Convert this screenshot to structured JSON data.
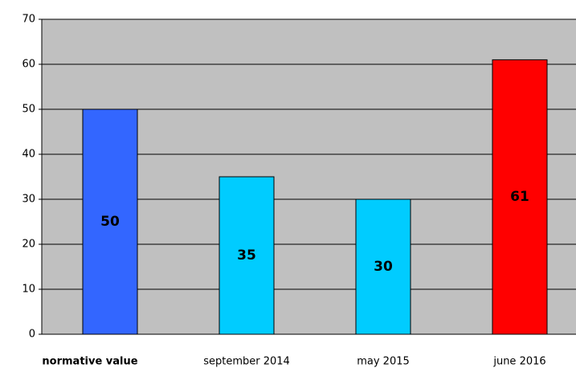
{
  "chart_data": {
    "type": "bar",
    "categories": [
      "normative value",
      "september 2014",
      "may 2015",
      "june 2016"
    ],
    "values": [
      50,
      35,
      30,
      61
    ],
    "colors": [
      "#3366ff",
      "#00ccff",
      "#00ccff",
      "#ff0000"
    ],
    "ylim": [
      0,
      70
    ],
    "yticks": [
      0,
      10,
      20,
      30,
      40,
      50,
      60,
      70
    ],
    "grid": true
  }
}
